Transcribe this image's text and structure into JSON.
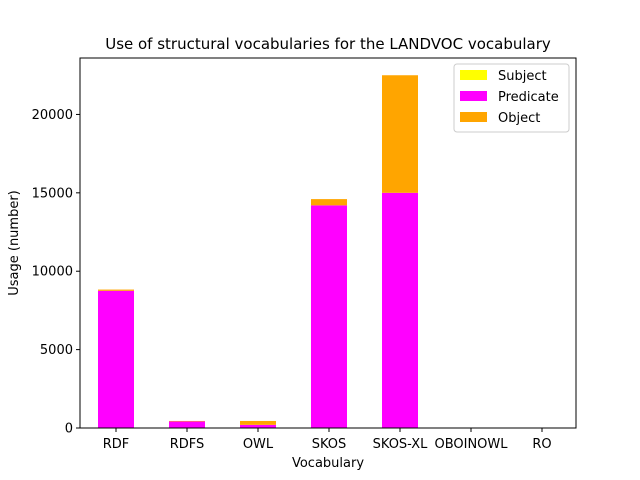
{
  "chart_data": {
    "type": "bar",
    "stacked": true,
    "title": "Use of structural vocabularies for the LANDVOC vocabulary",
    "xlabel": "Vocabulary",
    "ylabel": "Usage (number)",
    "categories": [
      "RDF",
      "RDFS",
      "OWL",
      "SKOS",
      "SKOS-XL",
      "OBOINOWL",
      "RO"
    ],
    "series": [
      {
        "name": "Subject",
        "color": "#ffff00",
        "values": [
          0,
          0,
          0,
          0,
          0,
          0,
          0
        ]
      },
      {
        "name": "Predicate",
        "color": "#ff00ff",
        "values": [
          8750,
          420,
          200,
          14200,
          15000,
          0,
          0
        ]
      },
      {
        "name": "Object",
        "color": "#ffa500",
        "values": [
          80,
          30,
          250,
          400,
          7500,
          0,
          0
        ]
      }
    ],
    "ylim": [
      0,
      23600
    ],
    "yticks": [
      0,
      5000,
      10000,
      15000,
      20000
    ],
    "grid": false,
    "legend_position": "top-right"
  }
}
